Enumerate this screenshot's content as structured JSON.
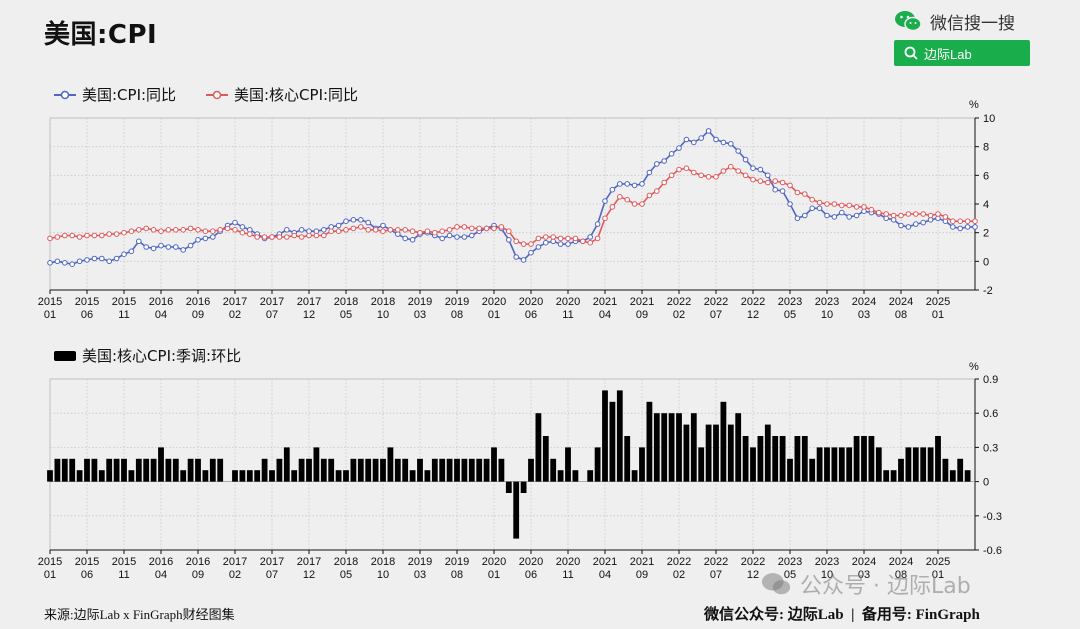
{
  "title": "美国:CPI",
  "brand": {
    "wechat_search": "微信搜一搜",
    "search_label": "边际Lab"
  },
  "watermark": "公众号 · 边际Lab",
  "footer": {
    "source": "来源:边际Lab x FinGraph财经图集",
    "right": "微信公众号: 边际Lab  |  备用号: FinGraph"
  },
  "colors": {
    "cpi": "#4f66c2",
    "core": "#e0595b",
    "bar": "#000000",
    "background": "#efefef",
    "brand_green": "#1aad4c"
  },
  "chart_data": [
    {
      "type": "line",
      "unit": "%",
      "ylim": [
        -2,
        10
      ],
      "yticks": [
        -2,
        0,
        2,
        4,
        6,
        8,
        10
      ],
      "grid": true,
      "legend_position": "top-left",
      "x_start": "2015-01",
      "x_tick_labels": [
        "2015\n01",
        "2015\n06",
        "2015\n11",
        "2016\n04",
        "2016\n09",
        "2017\n02",
        "2017\n07",
        "2017\n12",
        "2018\n05",
        "2018\n10",
        "2019\n03",
        "2019\n08",
        "2020\n01",
        "2020\n06",
        "2020\n11",
        "2021\n04",
        "2021\n09",
        "2022\n02",
        "2022\n07",
        "2022\n12",
        "2023\n05",
        "2023\n10",
        "2024\n03",
        "2024\n08",
        "2025\n01"
      ],
      "series": [
        {
          "name": "美国:CPI:同比",
          "values": [
            -0.1,
            0.0,
            -0.1,
            -0.2,
            0.0,
            0.1,
            0.2,
            0.2,
            0.0,
            0.2,
            0.5,
            0.7,
            1.4,
            1.0,
            0.9,
            1.1,
            1.0,
            1.0,
            0.8,
            1.1,
            1.5,
            1.6,
            1.7,
            2.1,
            2.5,
            2.7,
            2.4,
            2.2,
            1.9,
            1.6,
            1.7,
            1.9,
            2.2,
            2.0,
            2.2,
            2.1,
            2.1,
            2.2,
            2.4,
            2.5,
            2.8,
            2.9,
            2.9,
            2.7,
            2.3,
            2.5,
            2.2,
            1.9,
            1.6,
            1.5,
            1.9,
            2.0,
            1.8,
            1.6,
            1.8,
            1.7,
            1.7,
            1.8,
            2.1,
            2.3,
            2.5,
            2.3,
            1.5,
            0.3,
            0.1,
            0.6,
            1.0,
            1.3,
            1.4,
            1.2,
            1.2,
            1.4,
            1.4,
            1.7,
            2.6,
            4.2,
            5.0,
            5.4,
            5.4,
            5.3,
            5.4,
            6.2,
            6.8,
            7.0,
            7.5,
            7.9,
            8.5,
            8.3,
            8.6,
            9.1,
            8.5,
            8.3,
            8.2,
            7.7,
            7.1,
            6.5,
            6.4,
            6.0,
            5.0,
            4.9,
            4.0,
            3.0,
            3.2,
            3.7,
            3.7,
            3.2,
            3.1,
            3.4,
            3.1,
            3.2,
            3.5,
            3.4,
            3.3,
            3.0,
            2.9,
            2.5,
            2.4,
            2.6,
            2.7,
            2.9,
            3.0,
            2.8,
            2.4,
            2.3,
            2.4,
            2.4
          ]
        },
        {
          "name": "美国:核心CPI:同比",
          "values": [
            1.6,
            1.7,
            1.8,
            1.8,
            1.7,
            1.8,
            1.8,
            1.8,
            1.9,
            1.9,
            2.0,
            2.1,
            2.2,
            2.3,
            2.2,
            2.1,
            2.2,
            2.2,
            2.2,
            2.3,
            2.2,
            2.1,
            2.1,
            2.2,
            2.3,
            2.2,
            2.0,
            1.9,
            1.7,
            1.7,
            1.7,
            1.7,
            1.7,
            1.8,
            1.7,
            1.8,
            1.8,
            1.8,
            2.1,
            2.1,
            2.2,
            2.3,
            2.4,
            2.2,
            2.2,
            2.1,
            2.2,
            2.2,
            2.2,
            2.1,
            2.0,
            2.1,
            2.0,
            2.1,
            2.2,
            2.4,
            2.4,
            2.3,
            2.3,
            2.3,
            2.3,
            2.4,
            2.1,
            1.4,
            1.2,
            1.2,
            1.6,
            1.7,
            1.7,
            1.6,
            1.6,
            1.6,
            1.4,
            1.3,
            1.6,
            3.0,
            3.8,
            4.5,
            4.3,
            4.0,
            4.0,
            4.6,
            4.9,
            5.5,
            6.0,
            6.4,
            6.5,
            6.2,
            6.0,
            5.9,
            5.9,
            6.3,
            6.6,
            6.3,
            6.0,
            5.7,
            5.6,
            5.5,
            5.6,
            5.5,
            5.3,
            4.8,
            4.7,
            4.3,
            4.1,
            4.0,
            4.0,
            3.9,
            3.9,
            3.8,
            3.8,
            3.6,
            3.4,
            3.3,
            3.2,
            3.2,
            3.3,
            3.3,
            3.3,
            3.2,
            3.3,
            3.1,
            2.8,
            2.8,
            2.8,
            2.8
          ]
        }
      ]
    },
    {
      "type": "bar",
      "unit": "%",
      "ylim": [
        -0.6,
        0.9
      ],
      "yticks": [
        -0.6,
        -0.3,
        0,
        0.3,
        0.6,
        0.9
      ],
      "grid": true,
      "legend_position": "top-left",
      "x_start": "2015-01",
      "series": [
        {
          "name": "美国:核心CPI:季调:环比",
          "values": [
            0.1,
            0.2,
            0.2,
            0.2,
            0.1,
            0.2,
            0.2,
            0.1,
            0.2,
            0.2,
            0.2,
            0.1,
            0.2,
            0.2,
            0.2,
            0.3,
            0.2,
            0.2,
            0.1,
            0.2,
            0.2,
            0.1,
            0.2,
            0.2,
            0.0,
            0.1,
            0.1,
            0.1,
            0.1,
            0.2,
            0.1,
            0.2,
            0.3,
            0.1,
            0.2,
            0.2,
            0.3,
            0.2,
            0.2,
            0.1,
            0.1,
            0.2,
            0.2,
            0.2,
            0.2,
            0.2,
            0.3,
            0.2,
            0.2,
            0.1,
            0.2,
            0.1,
            0.2,
            0.2,
            0.2,
            0.2,
            0.2,
            0.2,
            0.2,
            0.2,
            0.3,
            0.2,
            -0.1,
            -0.5,
            -0.1,
            0.2,
            0.6,
            0.4,
            0.2,
            0.1,
            0.3,
            0.1,
            0.0,
            0.1,
            0.3,
            0.8,
            0.7,
            0.8,
            0.4,
            0.1,
            0.3,
            0.7,
            0.6,
            0.6,
            0.6,
            0.6,
            0.5,
            0.6,
            0.3,
            0.5,
            0.5,
            0.7,
            0.5,
            0.6,
            0.4,
            0.3,
            0.4,
            0.5,
            0.4,
            0.4,
            0.2,
            0.4,
            0.4,
            0.2,
            0.3,
            0.3,
            0.3,
            0.3,
            0.3,
            0.4,
            0.4,
            0.4,
            0.3,
            0.1,
            0.1,
            0.2,
            0.3,
            0.3,
            0.3,
            0.3,
            0.4,
            0.2,
            0.1,
            0.2,
            0.1
          ]
        }
      ]
    }
  ]
}
